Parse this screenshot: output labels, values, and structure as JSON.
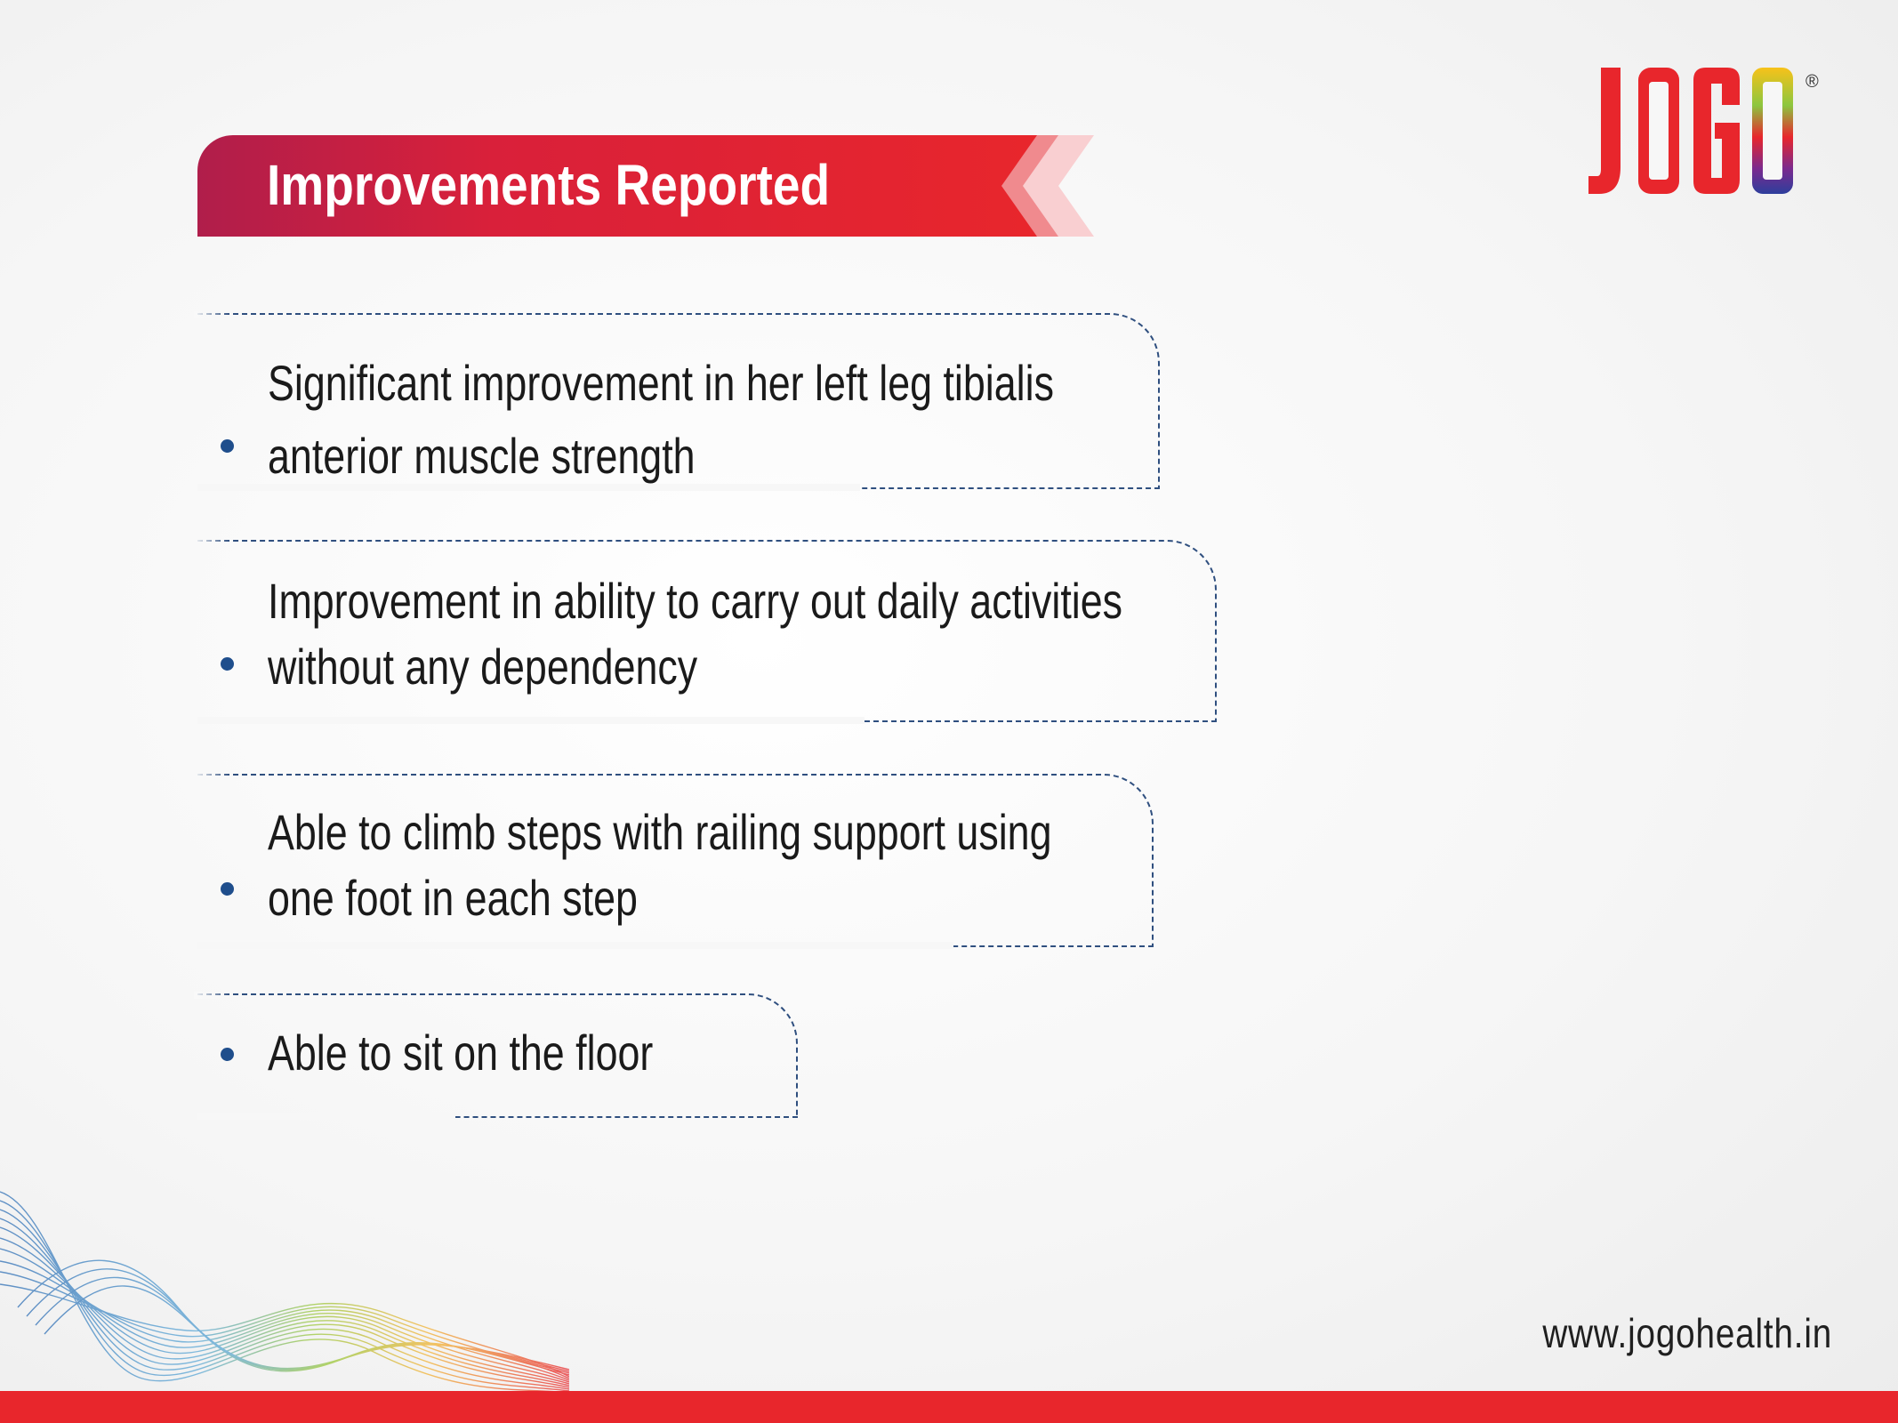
{
  "header": {
    "title": "Improvements Reported"
  },
  "logo": {
    "text": "JOGO",
    "registered": "®"
  },
  "items": [
    {
      "lines": [
        "Significant improvement in her left leg tibialis",
        "anterior muscle strength"
      ]
    },
    {
      "lines": [
        "Improvement in ability to carry out daily activities",
        "without any dependency"
      ]
    },
    {
      "lines": [
        "Able to climb steps with railing support using",
        "one foot in each step"
      ]
    },
    {
      "lines": [
        "Able to sit on the floor"
      ]
    }
  ],
  "footer": {
    "url": "www.jogohealth.in"
  },
  "colors": {
    "brand_red": "#e8262c",
    "banner_start": "#b01e4b",
    "bullet_blue": "#1f4e8c",
    "dash_blue": "#2f4f7f"
  }
}
